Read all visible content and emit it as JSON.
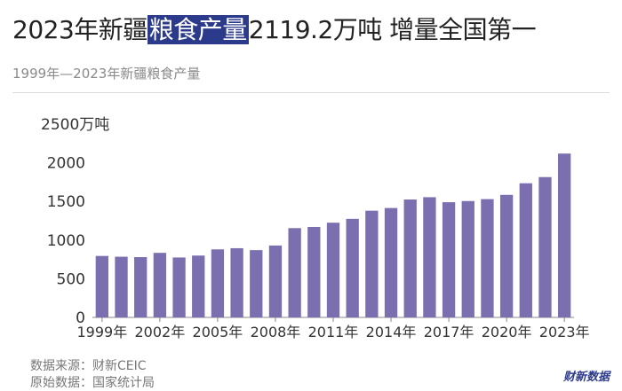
{
  "header": {
    "title_pre": "2023年新疆",
    "title_highlight": "粮食产量",
    "title_post": "2119.2万吨 增量全国第一",
    "subtitle": "1999年—2023年新疆粮食产量"
  },
  "footer": {
    "source": "数据来源：财新CEIC",
    "original_source": "原始数据：国家统计局",
    "logo": "财新数据"
  },
  "colors": {
    "bar": "#7b6fb0",
    "highlight": "#2c3a8c"
  },
  "chart_data": {
    "type": "bar",
    "unit_label": "万吨",
    "categories": [
      "1999",
      "2000",
      "2001",
      "2002",
      "2003",
      "2004",
      "2005",
      "2006",
      "2007",
      "2008",
      "2009",
      "2010",
      "2011",
      "2012",
      "2013",
      "2014",
      "2015",
      "2016",
      "2017",
      "2018",
      "2019",
      "2020",
      "2021",
      "2022",
      "2023"
    ],
    "tick_labels": [
      "1999年",
      "",
      "",
      "2002年",
      "",
      "",
      "2005年",
      "",
      "",
      "2008年",
      "",
      "",
      "2011年",
      "",
      "",
      "2014年",
      "",
      "",
      "2017年",
      "",
      "",
      "2020年",
      "",
      "",
      "2023年"
    ],
    "values": [
      795,
      785,
      780,
      835,
      775,
      800,
      880,
      895,
      870,
      930,
      1155,
      1170,
      1225,
      1275,
      1380,
      1415,
      1525,
      1555,
      1490,
      1505,
      1530,
      1585,
      1735,
      1815,
      2119.2
    ],
    "yticks": [
      0,
      500,
      1000,
      1500,
      2000,
      2500
    ],
    "ylim": [
      0,
      2500
    ]
  }
}
